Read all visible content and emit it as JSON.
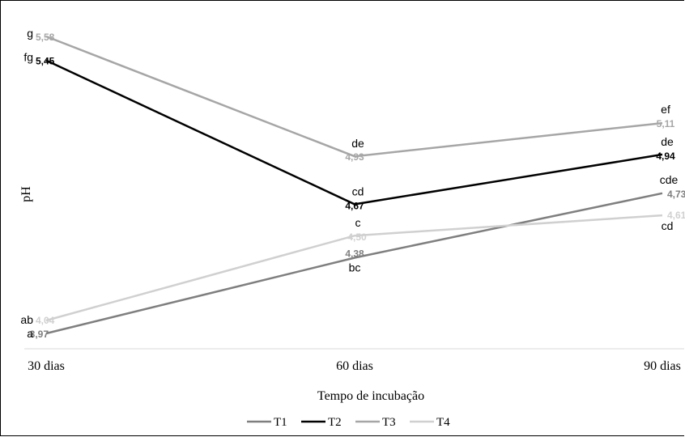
{
  "chart_data": {
    "type": "line",
    "categories": [
      "30 dias",
      "60 dias",
      "90 dias"
    ],
    "xlabel": "Tempo de incubação",
    "ylabel": "pH",
    "ylim": [
      3.8,
      5.7
    ],
    "grid": false,
    "legend_position": "bottom",
    "series": [
      {
        "name": "T1",
        "color": "#7f7f7f",
        "values": [
          3.97,
          4.38,
          4.73
        ],
        "value_labels": [
          "3,97",
          "4,38",
          "4,73"
        ],
        "letters": [
          "a",
          "bc",
          "cde"
        ]
      },
      {
        "name": "T2",
        "color": "#000000",
        "values": [
          5.45,
          4.67,
          4.94
        ],
        "value_labels": [
          "5,45",
          "4,67",
          "4,94"
        ],
        "letters": [
          "fg",
          "cd",
          "de"
        ]
      },
      {
        "name": "T3",
        "color": "#a6a6a6",
        "values": [
          5.58,
          4.93,
          5.11
        ],
        "value_labels": [
          "5,58",
          "4,93",
          "5,11"
        ],
        "letters": [
          "g",
          "de",
          "ef"
        ]
      },
      {
        "name": "T4",
        "color": "#d0d0d0",
        "values": [
          4.04,
          4.5,
          4.61
        ],
        "value_labels": [
          "4,04",
          "4,50",
          "4,61"
        ],
        "letters": [
          "ab",
          "c",
          "cd"
        ]
      }
    ]
  }
}
